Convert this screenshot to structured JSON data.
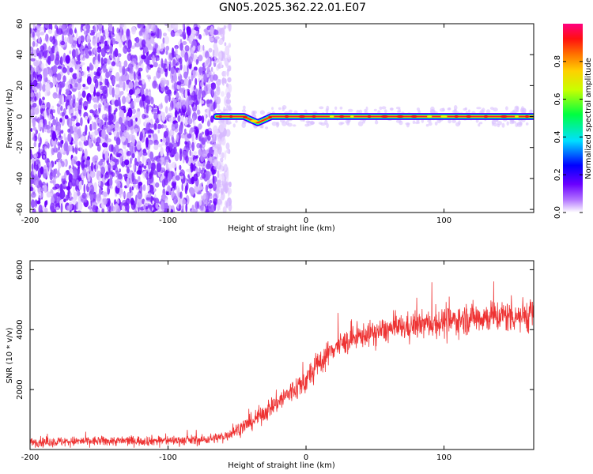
{
  "title": "GN05.2025.362.22.01.E07",
  "chart_data": [
    {
      "type": "heatmap",
      "name": "spectrogram",
      "xlabel": "Height of straight line (km)",
      "ylabel": "Frequency (Hz)",
      "xlim": [
        -200,
        165
      ],
      "ylim": [
        -62,
        60
      ],
      "xticks": [
        -200,
        -100,
        0,
        100
      ],
      "yticks": [
        60,
        40,
        20,
        0,
        -20,
        -40,
        -60
      ],
      "noise_region_x": [
        -200,
        -65
      ],
      "signal_start_x": -65,
      "signal_frequency_hz": 0,
      "signal_trace": [
        {
          "x": -65,
          "y": 0
        },
        {
          "x": -55,
          "y": 0
        },
        {
          "x": -45,
          "y": 0
        },
        {
          "x": -40,
          "y": -2
        },
        {
          "x": -35,
          "y": -4
        },
        {
          "x": -30,
          "y": -2
        },
        {
          "x": -25,
          "y": 0
        },
        {
          "x": -15,
          "y": 0
        },
        {
          "x": 0,
          "y": 0
        },
        {
          "x": 50,
          "y": 0
        },
        {
          "x": 100,
          "y": 0
        },
        {
          "x": 165,
          "y": 0
        }
      ],
      "colorbar": {
        "label": "Normalized spectral amplitude",
        "range": [
          0,
          1
        ],
        "ticks": [
          0.0,
          0.2,
          0.4,
          0.6,
          0.8
        ],
        "colors": [
          "#ffffff",
          "#7a00ff",
          "#0000ff",
          "#00ffff",
          "#00ff00",
          "#ffff00",
          "#ff8000",
          "#ff0000",
          "#ff0080"
        ]
      }
    },
    {
      "type": "line",
      "name": "snr",
      "xlabel": "Height of straight line (km)",
      "ylabel": "SNR (10 * v/v)",
      "xlim": [
        -200,
        165
      ],
      "ylim": [
        0,
        6300
      ],
      "xticks": [
        -200,
        -100,
        0,
        100
      ],
      "yticks": [
        2000,
        4000,
        6000
      ],
      "color": "#ee3333",
      "series": [
        {
          "name": "SNR",
          "trend": [
            {
              "x": -200,
              "y": 250
            },
            {
              "x": -150,
              "y": 280
            },
            {
              "x": -100,
              "y": 300
            },
            {
              "x": -75,
              "y": 320
            },
            {
              "x": -60,
              "y": 420
            },
            {
              "x": -40,
              "y": 900
            },
            {
              "x": -20,
              "y": 1600
            },
            {
              "x": 0,
              "y": 2300
            },
            {
              "x": 10,
              "y": 2900
            },
            {
              "x": 20,
              "y": 3400
            },
            {
              "x": 40,
              "y": 3800
            },
            {
              "x": 60,
              "y": 4000
            },
            {
              "x": 80,
              "y": 4150
            },
            {
              "x": 100,
              "y": 4250
            },
            {
              "x": 120,
              "y": 4400
            },
            {
              "x": 140,
              "y": 4450
            },
            {
              "x": 165,
              "y": 4500
            }
          ],
          "spread": [
            {
              "x": -200,
              "y": 250
            },
            {
              "x": -65,
              "y": 260
            },
            {
              "x": -30,
              "y": 500
            },
            {
              "x": 0,
              "y": 700
            },
            {
              "x": 40,
              "y": 600
            },
            {
              "x": 100,
              "y": 750
            },
            {
              "x": 165,
              "y": 900
            }
          ]
        }
      ]
    }
  ]
}
